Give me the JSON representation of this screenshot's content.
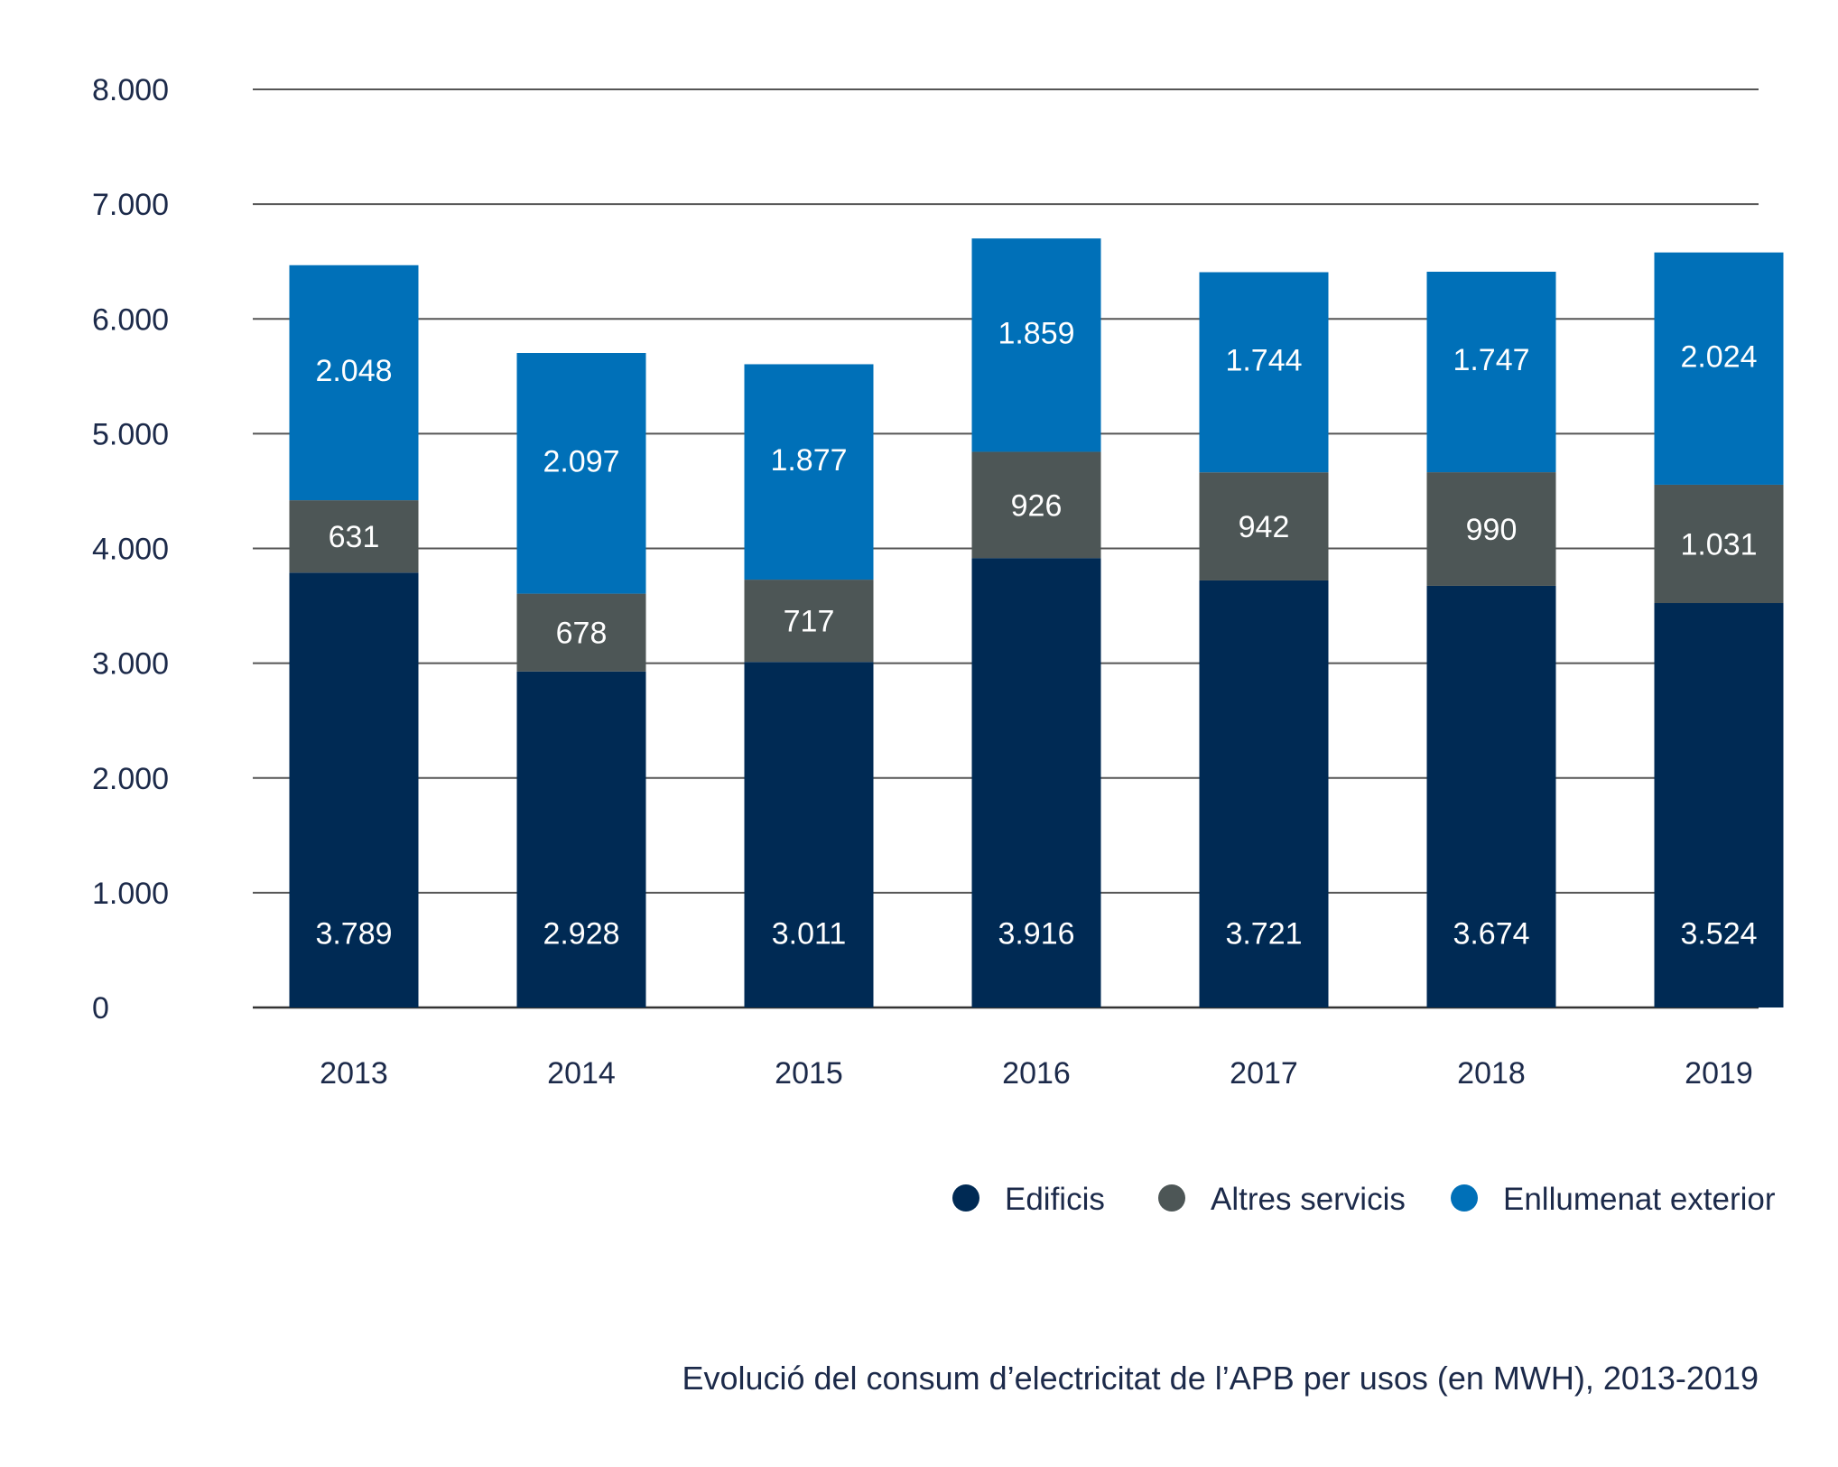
{
  "chart_data": {
    "type": "bar",
    "stacked": true,
    "categories": [
      "2013",
      "2014",
      "2015",
      "2016",
      "2017",
      "2018",
      "2019"
    ],
    "series": [
      {
        "name": "Edificis",
        "color": "#002a54",
        "values": [
          3789,
          2928,
          3011,
          3916,
          3721,
          3674,
          3524
        ],
        "labels": [
          "3.789",
          "2.928",
          "3.011",
          "3.916",
          "3.721",
          "3.674",
          "3.524"
        ]
      },
      {
        "name": "Altres servicis",
        "color": "#4d5656",
        "values": [
          631,
          678,
          717,
          926,
          942,
          990,
          1031
        ],
        "labels": [
          "631",
          "678",
          "717",
          "926",
          "942",
          "990",
          "1.031"
        ]
      },
      {
        "name": "Enllumenat exterior",
        "color": "#0070b8",
        "values": [
          2048,
          2097,
          1877,
          1859,
          1744,
          1747,
          2024
        ],
        "labels": [
          "2.048",
          "2.097",
          "1.877",
          "1.859",
          "1.744",
          "1.747",
          "2.024"
        ]
      }
    ],
    "ylim": [
      0,
      8000
    ],
    "yticks": [
      0,
      1000,
      2000,
      3000,
      4000,
      5000,
      6000,
      7000,
      8000
    ],
    "ytick_labels": [
      "0",
      "1.000",
      "2.000",
      "3.000",
      "4.000",
      "5.000",
      "6.000",
      "7.000",
      "8.000"
    ],
    "grid": true,
    "legend_position": "bottom-right"
  },
  "caption": "Evolució del consum d’electricitat de l’APB per usos (en MWH), 2013-2019"
}
